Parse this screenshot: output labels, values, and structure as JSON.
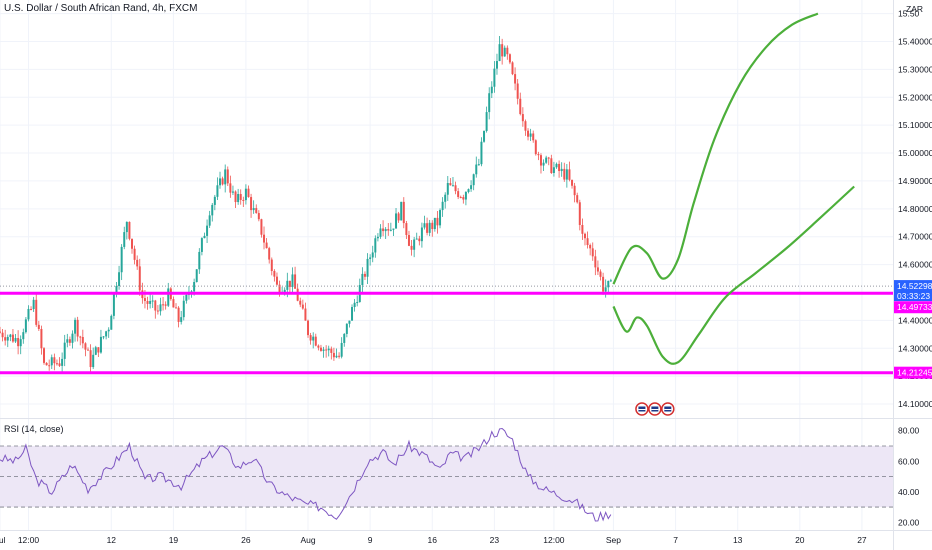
{
  "header": {
    "title": "U.S. Dollar / South African Rand, 4h, FXCM",
    "currency": "ZAR"
  },
  "rsi": {
    "title": "RSI (14, close)",
    "levels": [
      70,
      50,
      30
    ],
    "ticks": [
      "80.00",
      "60.00",
      "40.00",
      "20.00"
    ],
    "tick_values": [
      80,
      60,
      40,
      20
    ]
  },
  "price_tags": {
    "last": "14.52298",
    "countdown": "03:33:23",
    "resistance": "14.49733",
    "support": "14.21245"
  },
  "colors": {
    "up": "#26a69a",
    "down": "#ef5350",
    "level_line": "#ff00ff",
    "projection": "#4caf3a",
    "rsi_line": "#7e57c2",
    "rsi_band": "#ede7f6",
    "last_price": "#2962ff",
    "flag": "#d32f2f"
  },
  "chart_data": [
    {
      "type": "candlestick",
      "title": "U.S. Dollar / South African Rand, 4h, FXCM",
      "ylim": [
        14.05,
        15.52
      ],
      "y_ticks": [
        "15.50",
        "15.40000",
        "15.30000",
        "15.20000",
        "15.10000",
        "15.00000",
        "14.90000",
        "14.80000",
        "14.70000",
        "14.60000",
        "14.50000",
        "14.40000",
        "14.30000",
        "14.20000",
        "14.10000"
      ],
      "y_tick_values": [
        15.5,
        15.4,
        15.3,
        15.2,
        15.1,
        15.0,
        14.9,
        14.8,
        14.7,
        14.6,
        14.5,
        14.4,
        14.3,
        14.2,
        14.1
      ],
      "x_ticks": [
        "Jul",
        "12:00",
        "12",
        "19",
        "26",
        "Aug",
        "9",
        "16",
        "23",
        "12:00",
        "Sep",
        "7",
        "13",
        "20",
        "27"
      ],
      "x_tick_index": [
        0,
        11,
        43,
        67,
        95,
        119,
        143,
        167,
        191,
        214,
        237,
        261,
        285,
        309,
        333
      ],
      "price_path": [
        [
          0,
          14.36
        ],
        [
          8,
          14.33
        ],
        [
          14,
          14.46
        ],
        [
          18,
          14.24
        ],
        [
          24,
          14.25
        ],
        [
          30,
          14.39
        ],
        [
          36,
          14.25
        ],
        [
          43,
          14.38
        ],
        [
          50,
          14.76
        ],
        [
          56,
          14.48
        ],
        [
          62,
          14.43
        ],
        [
          66,
          14.49
        ],
        [
          70,
          14.4
        ],
        [
          76,
          14.55
        ],
        [
          82,
          14.8
        ],
        [
          88,
          14.93
        ],
        [
          92,
          14.82
        ],
        [
          96,
          14.86
        ],
        [
          102,
          14.72
        ],
        [
          108,
          14.52
        ],
        [
          114,
          14.54
        ],
        [
          120,
          14.36
        ],
        [
          126,
          14.3
        ],
        [
          132,
          14.27
        ],
        [
          136,
          14.41
        ],
        [
          142,
          14.57
        ],
        [
          148,
          14.75
        ],
        [
          152,
          14.73
        ],
        [
          156,
          14.8
        ],
        [
          160,
          14.65
        ],
        [
          164,
          14.72
        ],
        [
          170,
          14.75
        ],
        [
          174,
          14.88
        ],
        [
          180,
          14.85
        ],
        [
          186,
          14.96
        ],
        [
          190,
          15.2
        ],
        [
          194,
          15.38
        ],
        [
          197,
          15.34
        ],
        [
          202,
          15.16
        ],
        [
          206,
          15.05
        ],
        [
          210,
          14.98
        ],
        [
          214,
          14.95
        ],
        [
          220,
          14.92
        ],
        [
          224,
          14.82
        ],
        [
          226,
          14.7
        ],
        [
          230,
          14.64
        ],
        [
          234,
          14.52
        ],
        [
          236,
          14.52
        ]
      ],
      "last_price": 14.52298,
      "resistance_level": 14.49733,
      "support_level": 14.21245,
      "projection_up": [
        [
          237,
          14.53
        ],
        [
          244,
          14.66
        ],
        [
          250,
          14.64
        ],
        [
          256,
          14.55
        ],
        [
          262,
          14.62
        ],
        [
          268,
          14.82
        ],
        [
          276,
          15.05
        ],
        [
          286,
          15.25
        ],
        [
          296,
          15.38
        ],
        [
          306,
          15.46
        ],
        [
          316,
          15.5
        ]
      ],
      "projection_mid": [
        [
          237,
          14.45
        ],
        [
          242,
          14.36
        ],
        [
          246,
          14.41
        ],
        [
          250,
          14.38
        ],
        [
          256,
          14.27
        ],
        [
          262,
          14.25
        ],
        [
          270,
          14.35
        ],
        [
          280,
          14.48
        ],
        [
          292,
          14.57
        ],
        [
          304,
          14.66
        ],
        [
          316,
          14.76
        ],
        [
          330,
          14.88
        ]
      ]
    },
    {
      "type": "line",
      "title": "RSI (14, close)",
      "ylim": [
        15,
        87
      ],
      "reference_lines": [
        70,
        50,
        30
      ],
      "values_path": [
        [
          0,
          62
        ],
        [
          6,
          60
        ],
        [
          10,
          68
        ],
        [
          14,
          48
        ],
        [
          20,
          40
        ],
        [
          28,
          58
        ],
        [
          34,
          42
        ],
        [
          42,
          55
        ],
        [
          50,
          70
        ],
        [
          56,
          48
        ],
        [
          62,
          50
        ],
        [
          70,
          44
        ],
        [
          78,
          60
        ],
        [
          86,
          70
        ],
        [
          92,
          56
        ],
        [
          98,
          62
        ],
        [
          104,
          45
        ],
        [
          110,
          38
        ],
        [
          118,
          32
        ],
        [
          124,
          30
        ],
        [
          130,
          24
        ],
        [
          136,
          40
        ],
        [
          142,
          60
        ],
        [
          148,
          66
        ],
        [
          152,
          58
        ],
        [
          158,
          70
        ],
        [
          164,
          64
        ],
        [
          170,
          54
        ],
        [
          174,
          65
        ],
        [
          180,
          62
        ],
        [
          186,
          70
        ],
        [
          190,
          78
        ],
        [
          194,
          80
        ],
        [
          198,
          74
        ],
        [
          204,
          50
        ],
        [
          210,
          42
        ],
        [
          216,
          38
        ],
        [
          222,
          34
        ],
        [
          226,
          28
        ],
        [
          230,
          23
        ],
        [
          234,
          25
        ],
        [
          236,
          26
        ]
      ]
    }
  ]
}
